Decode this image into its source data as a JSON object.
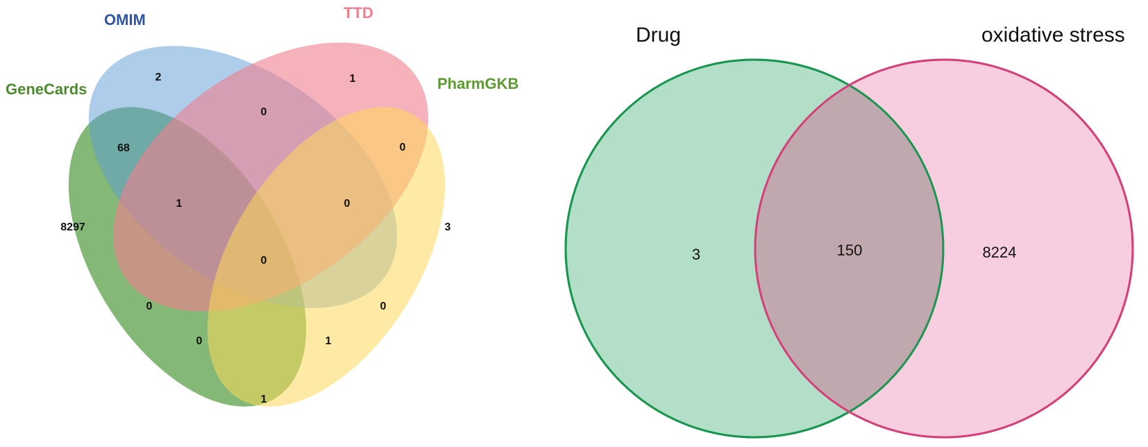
{
  "colors": {
    "genecards": "#4f9a3c",
    "omim": "#5b9bd5",
    "ttd": "#f07e8c",
    "pharmgkb": "#fdd85a",
    "drug_fill": "#b3dfc8",
    "drug_stroke": "#1a9650",
    "oxidative_fill": "#f5bfd6",
    "oxidative_stroke": "#d4417a",
    "genecards_label": "#4c8a2e",
    "omim_label": "#2f55a4",
    "ttd_label": "#f07e8c",
    "pharmgkb_label": "#5e9a32"
  },
  "venn4": {
    "sets": {
      "genecards": "GeneCards",
      "omim": "OMIM",
      "ttd": "TTD",
      "pharmgkb": "PharmGKB"
    },
    "regions": {
      "omim_only": "2",
      "ttd_only": "1",
      "genecards_only": "8297",
      "pharmgkb_only": "3",
      "genecards_omim": "68",
      "omim_ttd": "0",
      "ttd_pharmgkb": "0",
      "genecards_omim_ttd": "1",
      "omim_ttd_pharmgkb": "0",
      "all_four": "0",
      "genecards_ttd": "0",
      "omim_pharmgkb": "0",
      "genecards_ttd_pharmgkb": "0",
      "genecards_omim_pharmgkb": "1",
      "genecards_pharmgkb": "1"
    }
  },
  "venn2": {
    "left_title": "Drug",
    "right_title": "oxidative stress",
    "left_only": "3",
    "intersection": "150",
    "right_only": "8224"
  }
}
